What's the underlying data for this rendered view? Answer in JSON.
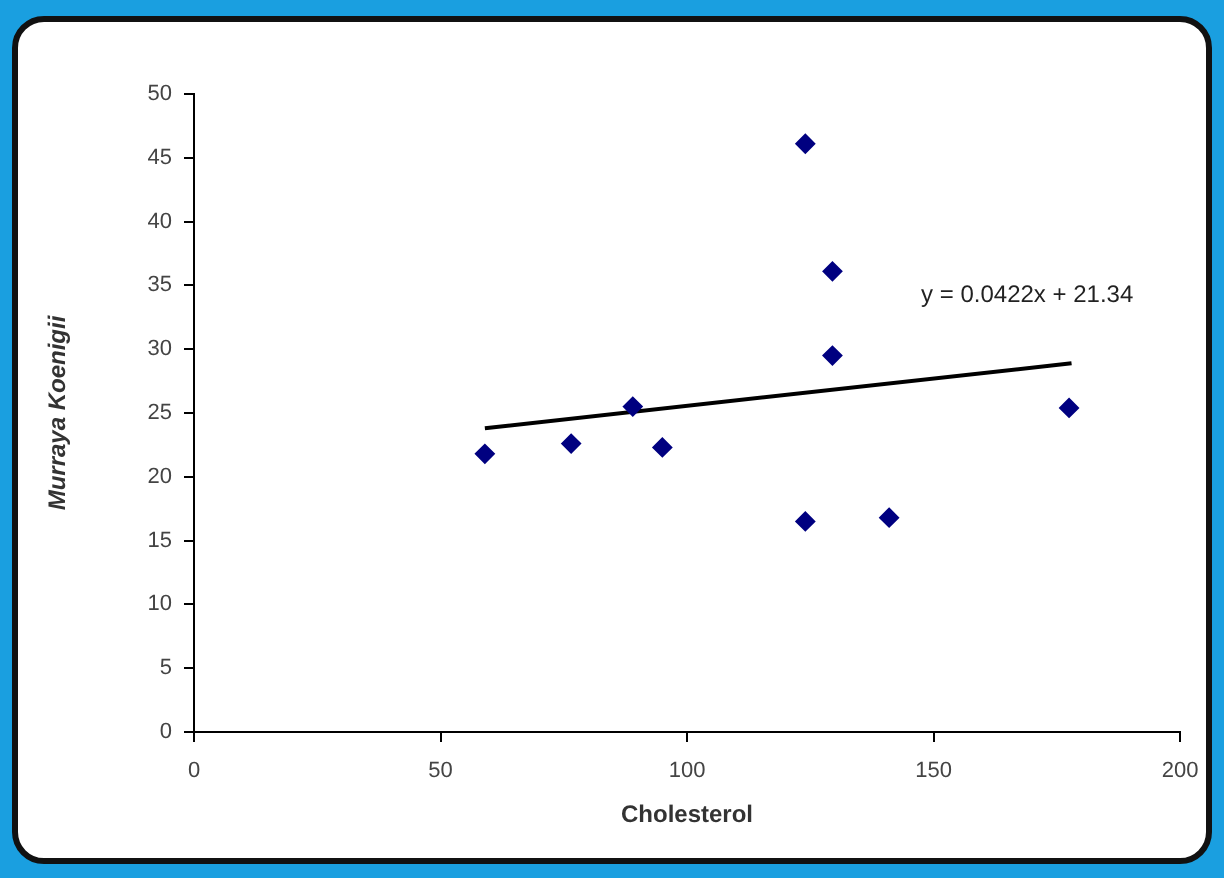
{
  "chart_data": {
    "type": "scatter",
    "xlabel": "Cholesterol",
    "ylabel": "Murraya Koenigii",
    "grid": false,
    "legend": false,
    "xlim": [
      0,
      200
    ],
    "xticks": [
      0,
      50,
      100,
      150,
      200
    ],
    "ylim": [
      0,
      50
    ],
    "yticks": [
      0,
      5,
      10,
      15,
      20,
      25,
      30,
      35,
      40,
      45,
      50
    ],
    "series": [
      {
        "color": "#000080",
        "marker": "diamond",
        "x": [
          59,
          76.5,
          89,
          95,
          124,
          129.5,
          129.5,
          177.5,
          124,
          141
        ],
        "values": [
          21.8,
          22.6,
          25.5,
          22.3,
          46.1,
          36.1,
          29.5,
          25.4,
          16.5,
          16.8
        ]
      },
      {
        "type": "line",
        "marker": "none",
        "color": "#000000",
        "x": [
          59,
          178
        ],
        "values": [
          23.8,
          28.9
        ]
      }
    ],
    "annotations": [
      "y = 0.0422x + 21.34"
    ]
  }
}
